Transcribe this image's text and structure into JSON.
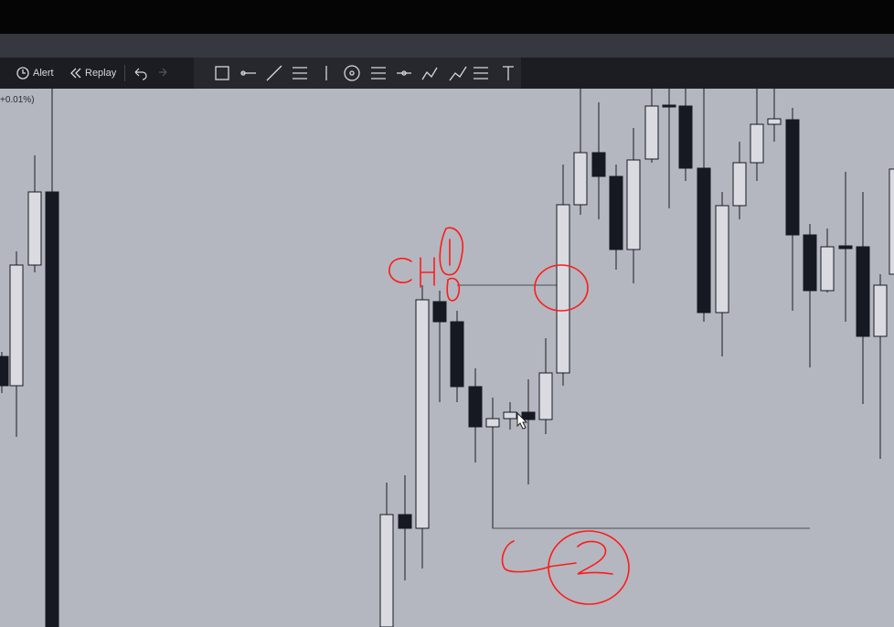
{
  "toolbar": {
    "alert": "Alert",
    "replay": "Replay"
  },
  "legend": {
    "change": "+0.01%)"
  }
}
